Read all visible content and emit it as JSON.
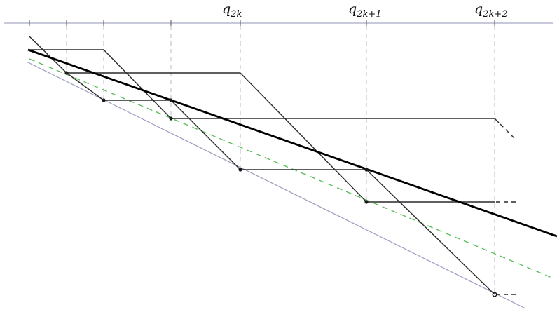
{
  "labels": {
    "q2k": {
      "base": "q",
      "sub": "2k"
    },
    "q2k1": {
      "base": "q",
      "sub": "2k+1"
    },
    "q2k2": {
      "base": "q",
      "sub": "2k+2"
    }
  },
  "colors": {
    "axis": "#a9a9c6",
    "guide": "#b8b8c4",
    "ink": "#2a2a2a",
    "heavy": "#000000",
    "dashed_line": "#55bb55",
    "lower_bound": "#9c9cc0",
    "background": "#ffffff"
  }
}
